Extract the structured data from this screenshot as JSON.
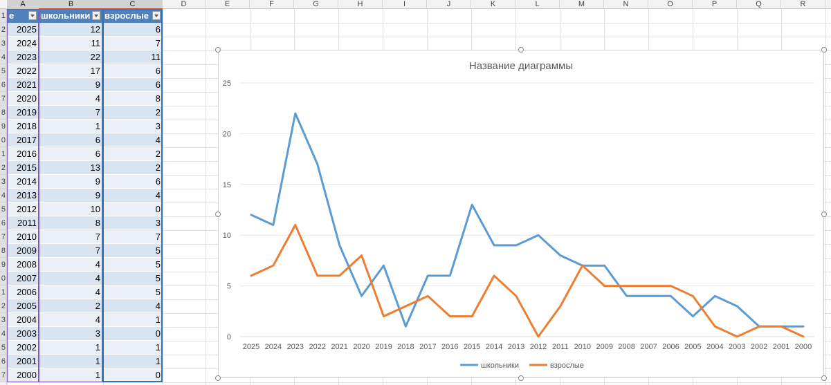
{
  "columns": [
    "A",
    "B",
    "C",
    "D",
    "E",
    "F",
    "G",
    "H",
    "I",
    "J",
    "K",
    "L",
    "M",
    "N",
    "O",
    "P",
    "Q",
    "R"
  ],
  "rows": [
    "1",
    "2",
    "3",
    "4",
    "5",
    "6",
    "7",
    "8",
    "9",
    "0",
    "1",
    "2",
    "3",
    "4",
    "5",
    "6",
    "7",
    "8",
    "9",
    "0",
    "1",
    "2",
    "3",
    "4",
    "5",
    "6",
    "7"
  ],
  "table": {
    "headers": [
      "е",
      "школьники",
      "взрослые"
    ],
    "rows": [
      [
        "2025",
        "12",
        "6"
      ],
      [
        "2024",
        "11",
        "7"
      ],
      [
        "2023",
        "22",
        "11"
      ],
      [
        "2022",
        "17",
        "6"
      ],
      [
        "2021",
        "9",
        "6"
      ],
      [
        "2020",
        "4",
        "8"
      ],
      [
        "2019",
        "7",
        "2"
      ],
      [
        "2018",
        "1",
        "3"
      ],
      [
        "2017",
        "6",
        "4"
      ],
      [
        "2016",
        "6",
        "2"
      ],
      [
        "2015",
        "13",
        "2"
      ],
      [
        "2014",
        "9",
        "6"
      ],
      [
        "2013",
        "9",
        "4"
      ],
      [
        "2012",
        "10",
        "0"
      ],
      [
        "2011",
        "8",
        "3"
      ],
      [
        "2010",
        "7",
        "7"
      ],
      [
        "2009",
        "7",
        "5"
      ],
      [
        "2008",
        "4",
        "5"
      ],
      [
        "2007",
        "4",
        "5"
      ],
      [
        "2006",
        "4",
        "5"
      ],
      [
        "2005",
        "2",
        "4"
      ],
      [
        "2004",
        "4",
        "1"
      ],
      [
        "2003",
        "3",
        "0"
      ],
      [
        "2002",
        "1",
        "1"
      ],
      [
        "2001",
        "1",
        "1"
      ],
      [
        "2000",
        "1",
        "0"
      ]
    ]
  },
  "chart_data": {
    "type": "line",
    "title": "Название диаграммы",
    "categories": [
      "2025",
      "2024",
      "2023",
      "2022",
      "2021",
      "2020",
      "2019",
      "2018",
      "2017",
      "2016",
      "2015",
      "2014",
      "2013",
      "2012",
      "2011",
      "2010",
      "2009",
      "2008",
      "2007",
      "2006",
      "2005",
      "2004",
      "2003",
      "2002",
      "2001",
      "2000"
    ],
    "series": [
      {
        "name": "школьники",
        "color": "#5b9bd5",
        "values": [
          12,
          11,
          22,
          17,
          9,
          4,
          7,
          1,
          6,
          6,
          13,
          9,
          9,
          10,
          8,
          7,
          7,
          4,
          4,
          4,
          2,
          4,
          3,
          1,
          1,
          1
        ]
      },
      {
        "name": "взрослые",
        "color": "#ed7d31",
        "values": [
          6,
          7,
          11,
          6,
          6,
          8,
          2,
          3,
          4,
          2,
          2,
          6,
          4,
          0,
          3,
          7,
          5,
          5,
          5,
          5,
          4,
          1,
          0,
          1,
          1,
          0
        ]
      }
    ],
    "ylim": [
      0,
      25
    ],
    "yticks": [
      "0",
      "5",
      "10",
      "15",
      "20",
      "25"
    ],
    "grid": true,
    "legend": "bottom"
  }
}
